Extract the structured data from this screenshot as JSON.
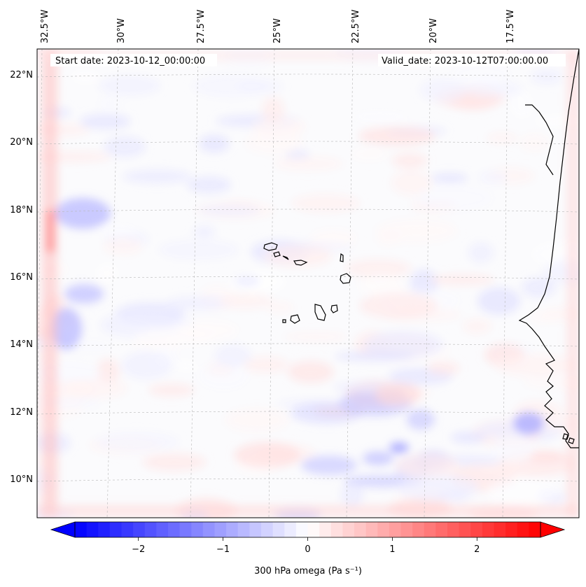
{
  "map": {
    "start_date_text": "Start date: 2023-10-12_00:00:00",
    "valid_date_text": "Valid_date: 2023-10-12T07:00:00.00",
    "lon_labels": [
      "32.5°W",
      "30°W",
      "27.5°W",
      "25°W",
      "22.5°W",
      "20°W",
      "17.5°W"
    ],
    "lat_labels": [
      "22°N",
      "20°N",
      "18°N",
      "16°N",
      "14°N",
      "12°N",
      "10°N"
    ],
    "field": "300 hPa omega",
    "colors": {
      "negative": "#0000ff",
      "neutral": "#ffffff",
      "positive": "#ff0000",
      "coast": "#000000"
    }
  },
  "colorbar": {
    "label": "300 hPa omega (Pa s⁻¹)",
    "tick_labels": [
      "−2",
      "−1",
      "0",
      "1",
      "2"
    ],
    "tick_values": [
      -2,
      -1,
      0,
      1,
      2
    ],
    "range": [
      -2.75,
      2.75
    ],
    "extend": "both"
  }
}
